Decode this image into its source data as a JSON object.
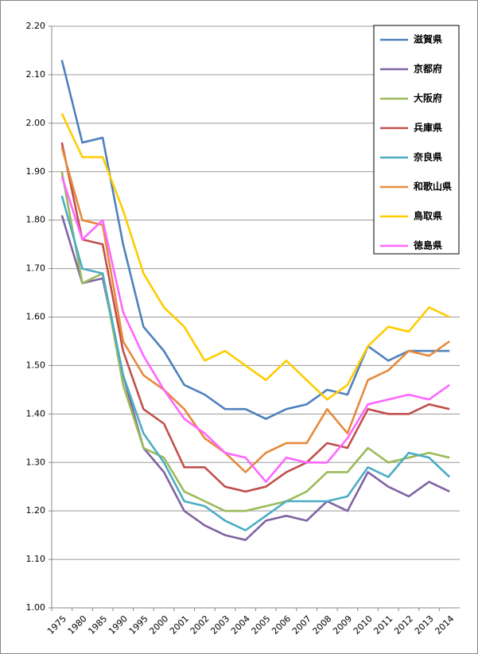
{
  "chart_data": {
    "type": "line",
    "categories": [
      "1975",
      "1980",
      "1985",
      "1990",
      "1995",
      "2000",
      "2001",
      "2002",
      "2003",
      "2004",
      "2005",
      "2006",
      "2007",
      "2008",
      "2009",
      "2010",
      "2011",
      "2012",
      "2013",
      "2014"
    ],
    "ylim": [
      1.0,
      2.2
    ],
    "yticks": [
      {
        "value": 1.0,
        "label": "1.00"
      },
      {
        "value": 1.1,
        "label": "1.10"
      },
      {
        "value": 1.2,
        "label": "1.20"
      },
      {
        "value": 1.3,
        "label": "1.30"
      },
      {
        "value": 1.4,
        "label": "1.40"
      },
      {
        "value": 1.5,
        "label": "1.50"
      },
      {
        "value": 1.6,
        "label": "1.60"
      },
      {
        "value": 1.7,
        "label": "1.70"
      },
      {
        "value": 1.8,
        "label": "1.80"
      },
      {
        "value": 1.9,
        "label": "1.90"
      },
      {
        "value": 2.0,
        "label": "2.00"
      },
      {
        "value": 2.1,
        "label": "2.10"
      },
      {
        "value": 2.2,
        "label": "2.20"
      }
    ],
    "grid": true,
    "legend": "upper right",
    "series": [
      {
        "name": "滋賀県",
        "color": "#4f81bd",
        "values": [
          2.13,
          1.96,
          1.97,
          1.75,
          1.58,
          1.53,
          1.46,
          1.44,
          1.41,
          1.41,
          1.39,
          1.41,
          1.42,
          1.45,
          1.44,
          1.54,
          1.51,
          1.53,
          1.53,
          1.53
        ]
      },
      {
        "name": "京都府",
        "color": "#8064a2",
        "values": [
          1.81,
          1.67,
          1.68,
          1.48,
          1.33,
          1.28,
          1.2,
          1.17,
          1.15,
          1.14,
          1.18,
          1.19,
          1.18,
          1.22,
          1.2,
          1.28,
          1.25,
          1.23,
          1.26,
          1.24
        ]
      },
      {
        "name": "大阪府",
        "color": "#9bbb59",
        "values": [
          1.9,
          1.67,
          1.69,
          1.46,
          1.33,
          1.31,
          1.24,
          1.22,
          1.2,
          1.2,
          1.21,
          1.22,
          1.24,
          1.28,
          1.28,
          1.33,
          1.3,
          1.31,
          1.32,
          1.31
        ]
      },
      {
        "name": "兵庫県",
        "color": "#c0504d",
        "values": [
          1.96,
          1.76,
          1.75,
          1.53,
          1.41,
          1.38,
          1.29,
          1.29,
          1.25,
          1.24,
          1.25,
          1.28,
          1.3,
          1.34,
          1.33,
          1.41,
          1.4,
          1.4,
          1.42,
          1.41
        ]
      },
      {
        "name": "奈良県",
        "color": "#4bacc6",
        "values": [
          1.85,
          1.7,
          1.69,
          1.48,
          1.36,
          1.3,
          1.22,
          1.21,
          1.18,
          1.16,
          1.19,
          1.22,
          1.22,
          1.22,
          1.23,
          1.29,
          1.27,
          1.32,
          1.31,
          1.27
        ]
      },
      {
        "name": "和歌山県",
        "color": "#e68a3c",
        "values": [
          1.95,
          1.8,
          1.79,
          1.55,
          1.48,
          1.45,
          1.41,
          1.35,
          1.32,
          1.28,
          1.32,
          1.34,
          1.34,
          1.41,
          1.36,
          1.47,
          1.49,
          1.53,
          1.52,
          1.55
        ]
      },
      {
        "name": "鳥取県",
        "color": "#ffcc00",
        "values": [
          2.02,
          1.93,
          1.93,
          1.82,
          1.69,
          1.62,
          1.58,
          1.51,
          1.53,
          1.5,
          1.47,
          1.51,
          1.47,
          1.43,
          1.46,
          1.54,
          1.58,
          1.57,
          1.62,
          1.6
        ]
      },
      {
        "name": "徳島県",
        "color": "#ff66ff",
        "values": [
          1.89,
          1.76,
          1.8,
          1.61,
          1.52,
          1.45,
          1.39,
          1.36,
          1.32,
          1.31,
          1.26,
          1.31,
          1.3,
          1.3,
          1.35,
          1.42,
          1.43,
          1.44,
          1.43,
          1.46
        ]
      }
    ]
  }
}
